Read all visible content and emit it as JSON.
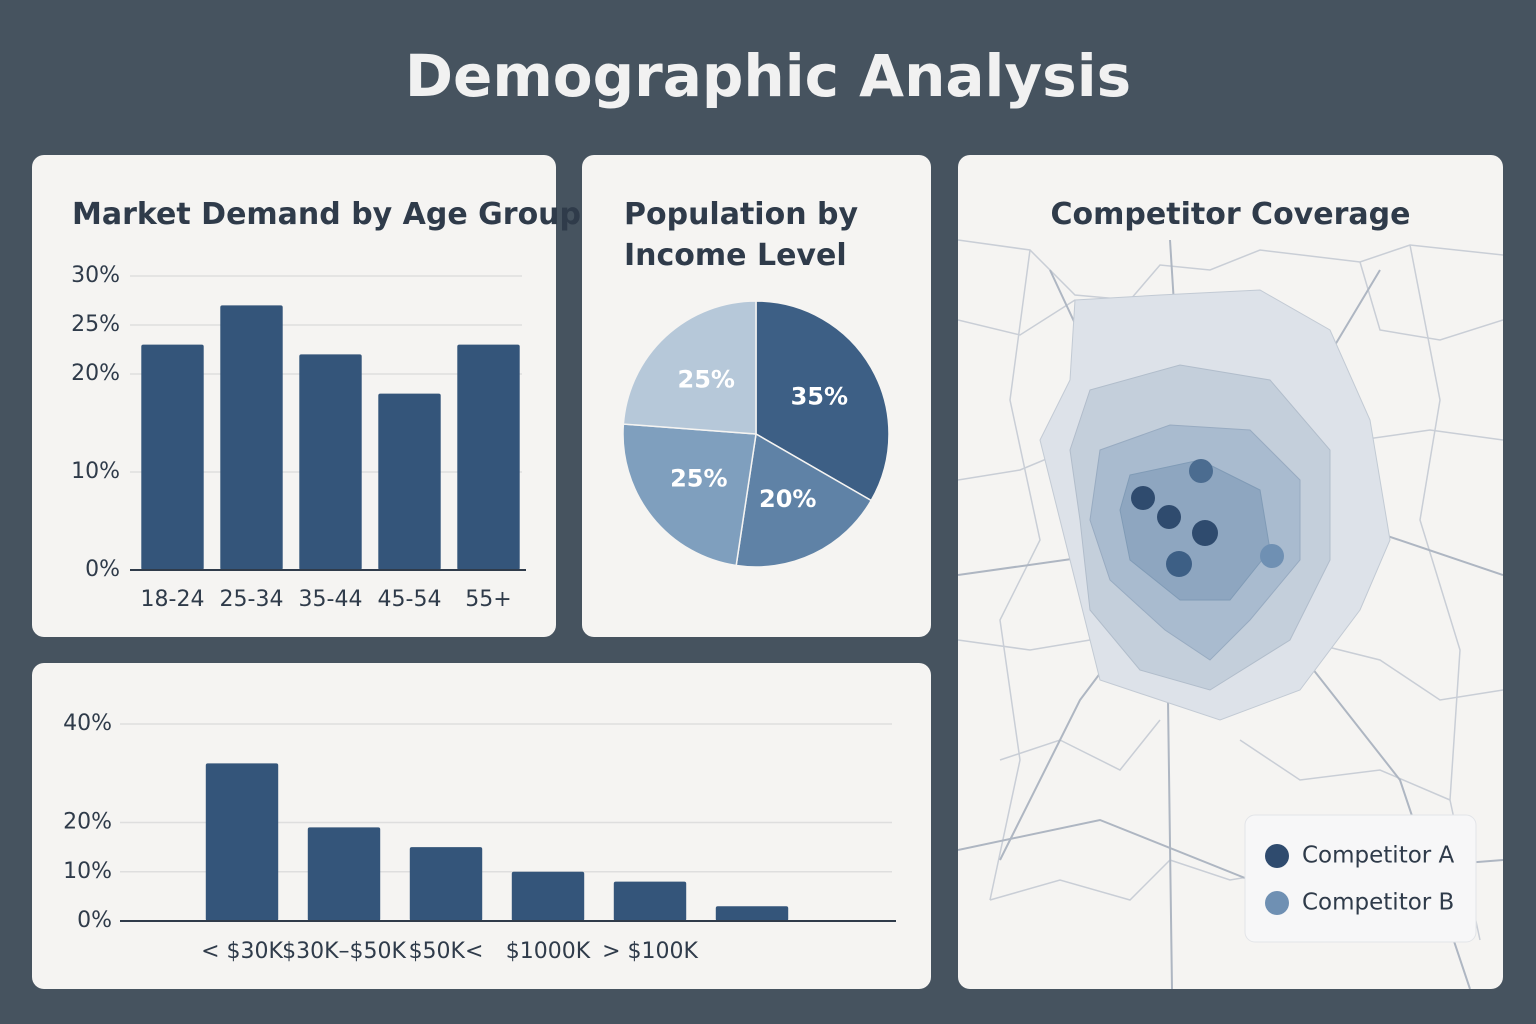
{
  "title": "Demographic Analysis",
  "chart_data": [
    {
      "type": "bar",
      "title": "Market Demand by Age Group",
      "categories": [
        "18-24",
        "25-34",
        "35-44",
        "45-54",
        "55+"
      ],
      "values": [
        23,
        27,
        22,
        18,
        23
      ],
      "color": "#34557a",
      "ylim": [
        0,
        30
      ],
      "yticks": [
        {
          "value": 0,
          "label": "0%"
        },
        {
          "value": 10,
          "label": "10%"
        },
        {
          "value": 20,
          "label": "20%"
        },
        {
          "value": 25,
          "label": "25%"
        },
        {
          "value": 30,
          "label": "30%"
        }
      ],
      "grid": true
    },
    {
      "type": "pie",
      "title": "Population by Income Level",
      "values": [
        35,
        20,
        25,
        25
      ],
      "value_labels": [
        "35%",
        "20%",
        "25%",
        "25%"
      ],
      "colors": [
        "#3d5f85",
        "#5f82a6",
        "#7f9fbe",
        "#b6c8d9"
      ]
    },
    {
      "type": "bar",
      "categories": [
        "< $30K",
        "$30K–$50K",
        "$50K<",
        "$1000K",
        "> $100K",
        null
      ],
      "values": [
        32,
        19,
        15,
        10,
        8,
        3
      ],
      "color": "#34557a",
      "ylim": [
        0,
        40
      ],
      "yticks": [
        {
          "value": 0,
          "label": "0%"
        },
        {
          "value": 10,
          "label": "10%"
        },
        {
          "value": 20,
          "label": "20%"
        },
        {
          "value": 40,
          "label": "40%"
        }
      ],
      "grid": true
    }
  ],
  "map": {
    "title": "Competitor Coverage",
    "legend": [
      {
        "name": "Competitor A",
        "color": "#2f4b6e"
      },
      {
        "name": "Competitor B",
        "color": "#6f90b3"
      }
    ]
  }
}
